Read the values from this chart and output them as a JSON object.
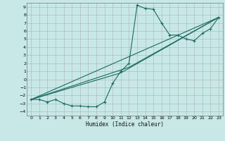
{
  "title": "",
  "xlabel": "Humidex (Indice chaleur)",
  "bg_color": "#c8e8e8",
  "grid_color": "#aaaaaa",
  "line_color": "#1a6a60",
  "xlim": [
    -0.5,
    23.5
  ],
  "ylim": [
    -4.5,
    9.5
  ],
  "xticks": [
    0,
    1,
    2,
    3,
    4,
    5,
    6,
    7,
    8,
    9,
    10,
    11,
    12,
    13,
    14,
    15,
    16,
    17,
    18,
    19,
    20,
    21,
    22,
    23
  ],
  "yticks": [
    -4,
    -3,
    -2,
    -1,
    0,
    1,
    2,
    3,
    4,
    5,
    6,
    7,
    8,
    9
  ],
  "series1_x": [
    0,
    1,
    2,
    3,
    4,
    5,
    6,
    7,
    8,
    9,
    10,
    11,
    12,
    13,
    14,
    15,
    16,
    17,
    18,
    19,
    20,
    21,
    22,
    23
  ],
  "series1_y": [
    -2.5,
    -2.5,
    -2.8,
    -2.5,
    -3.0,
    -3.3,
    -3.3,
    -3.4,
    -3.4,
    -2.8,
    -0.5,
    1.0,
    2.0,
    9.2,
    8.8,
    8.7,
    7.0,
    5.5,
    5.5,
    5.0,
    4.8,
    5.7,
    6.3,
    7.7
  ],
  "series2_x": [
    0,
    23
  ],
  "series2_y": [
    -2.5,
    7.7
  ],
  "series3_x": [
    0,
    12,
    23
  ],
  "series3_y": [
    -2.5,
    1.5,
    7.7
  ],
  "series4_x": [
    0,
    11,
    23
  ],
  "series4_y": [
    -2.5,
    0.8,
    7.7
  ]
}
